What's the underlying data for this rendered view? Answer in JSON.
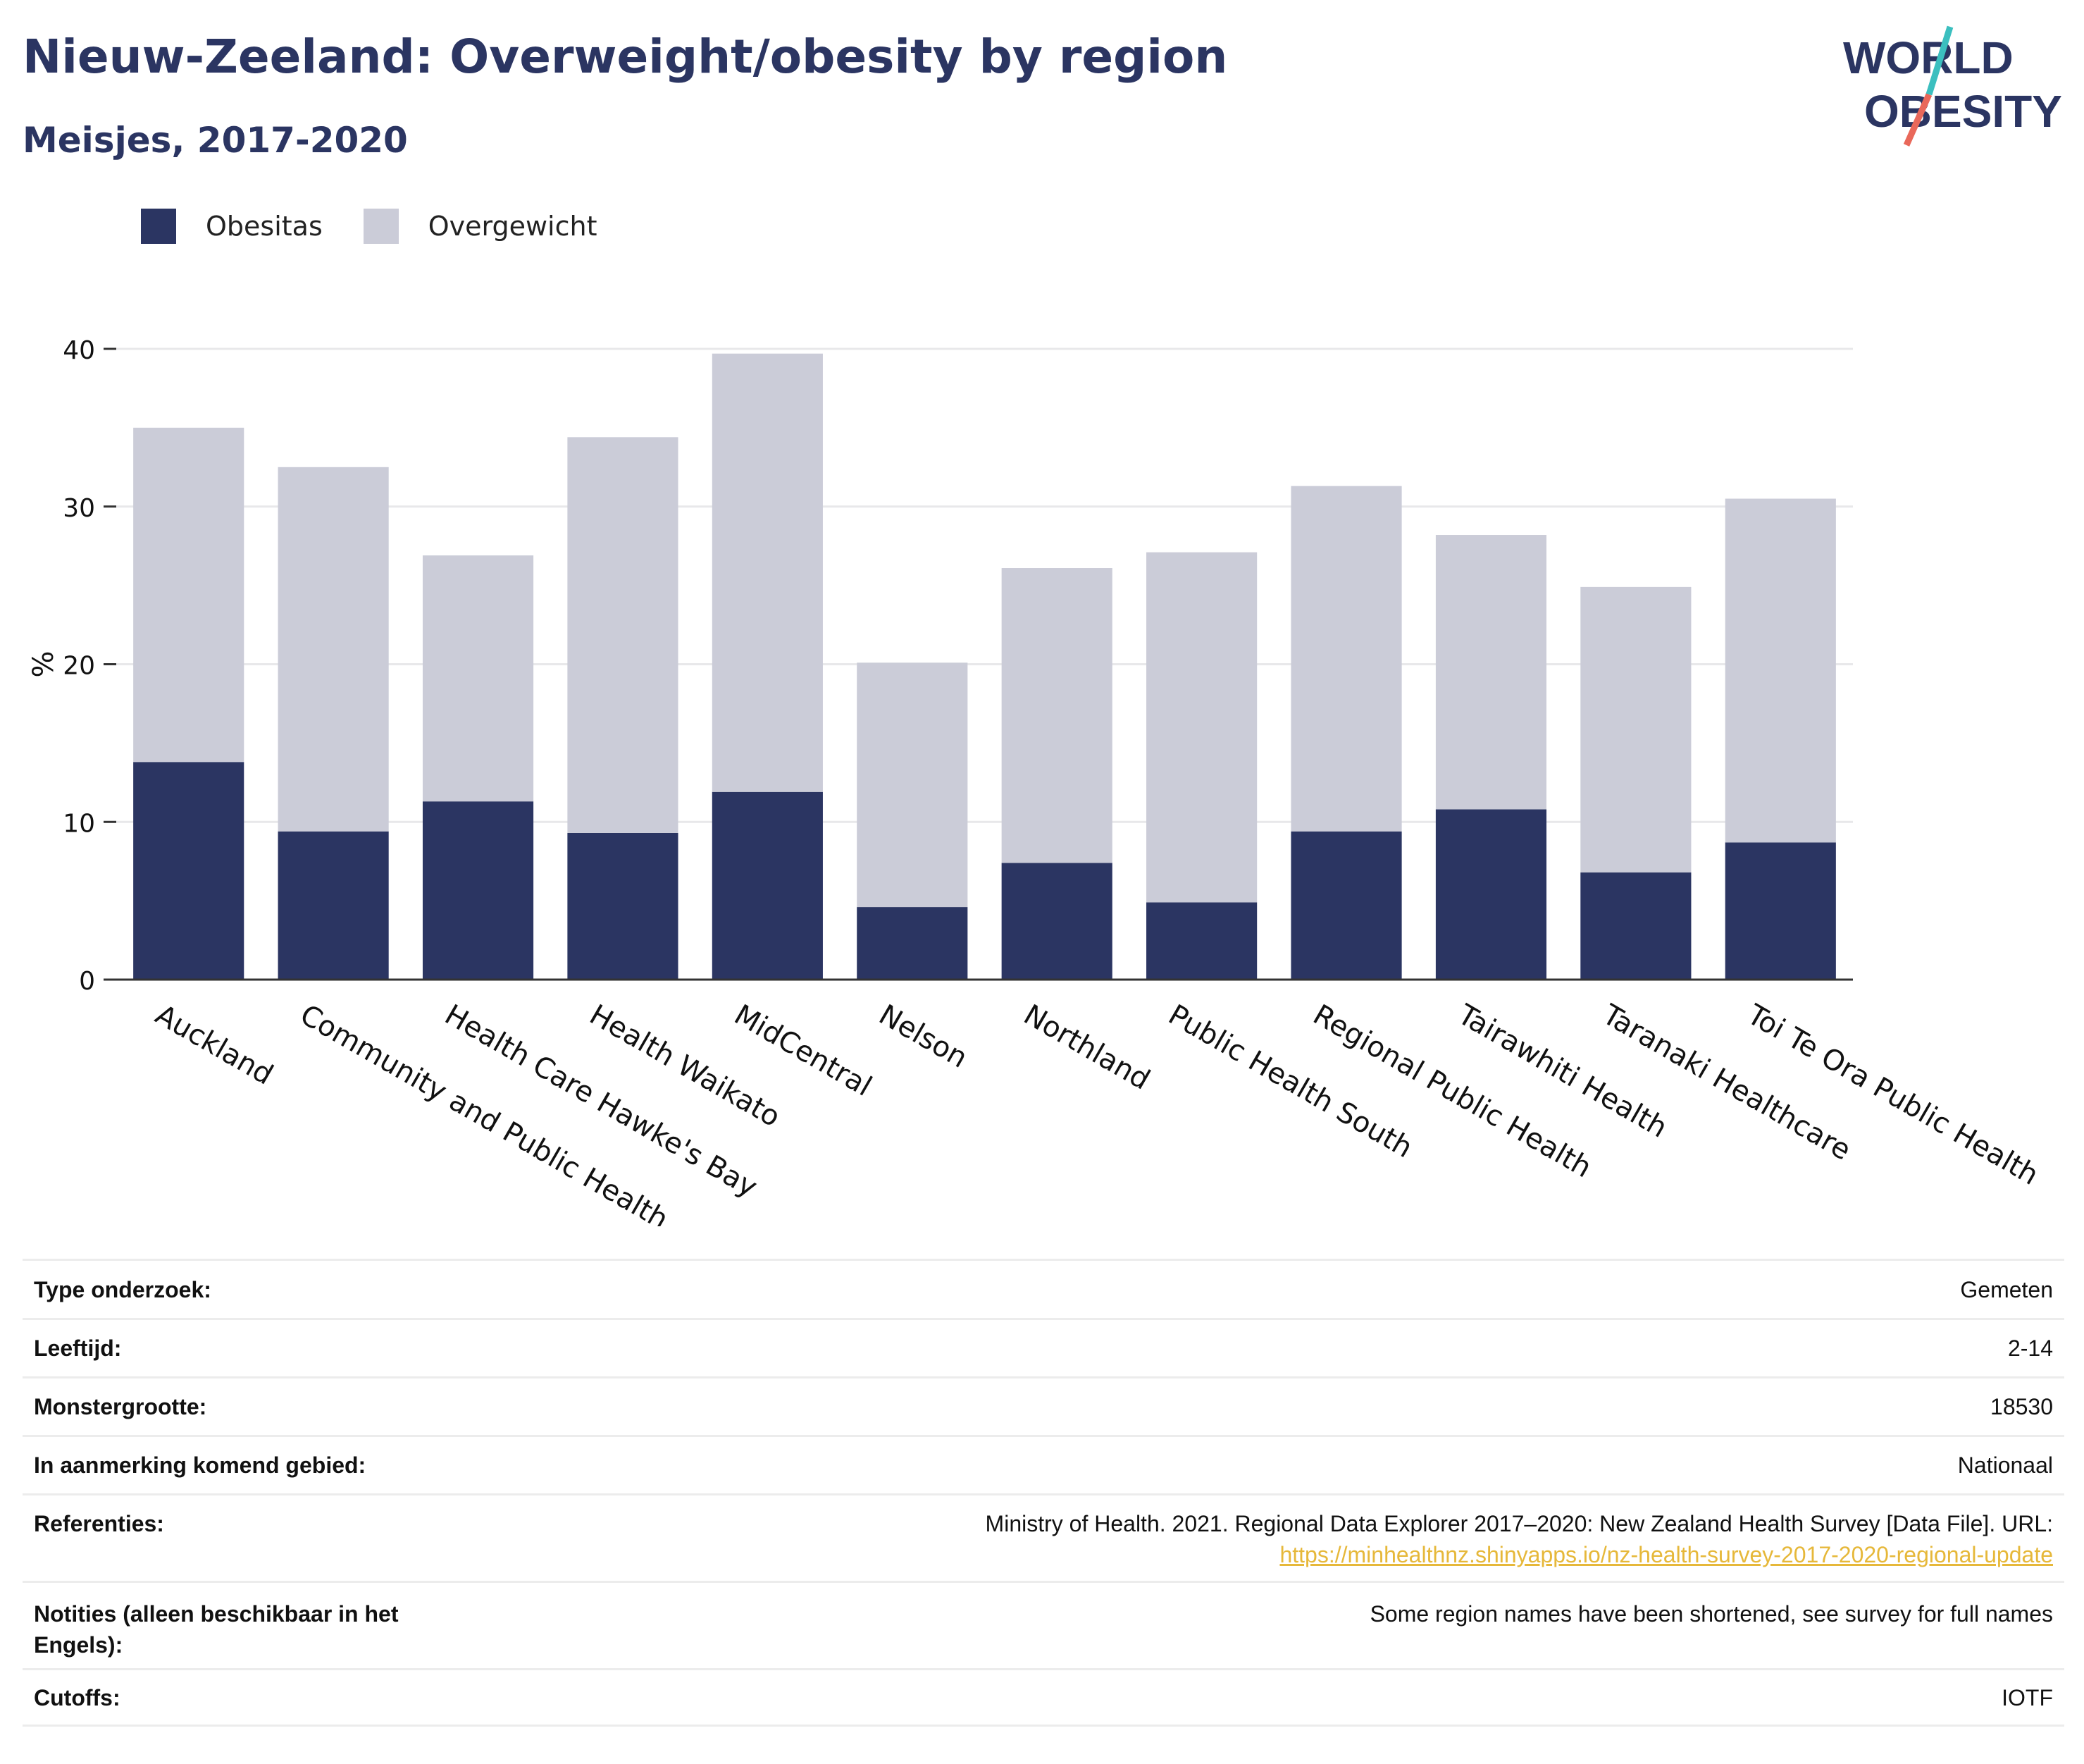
{
  "header": {
    "title": "Nieuw-Zeeland: Overweight/obesity by region",
    "subtitle": "Meisjes, 2017-2020"
  },
  "logo": {
    "line1": "WORLD",
    "line2": "OBESITY"
  },
  "colors": {
    "obese": "#2b3562",
    "overweight": "#cbccd8",
    "accent": "#e6b83a",
    "logo_teal": "#3bbfbf",
    "logo_coral": "#e9685a"
  },
  "legend": [
    "Obesitas",
    "Overgewicht"
  ],
  "chart_data": {
    "type": "bar",
    "stacked": true,
    "categories": [
      "Auckland",
      "Community and Public Health",
      "Health Care Hawke's Bay",
      "Health Waikato",
      "MidCentral",
      "Nelson",
      "Northland",
      "Public Health South",
      "Regional Public Health",
      "Tairawhiti Health",
      "Taranaki Healthcare",
      "Toi Te Ora Public Health"
    ],
    "series": [
      {
        "name": "Obesitas",
        "values": [
          13.8,
          9.4,
          11.3,
          9.3,
          11.9,
          4.6,
          7.4,
          4.9,
          9.4,
          10.8,
          6.8,
          8.7
        ]
      },
      {
        "name": "Overgewicht",
        "values": [
          21.2,
          23.1,
          15.6,
          25.1,
          27.8,
          15.5,
          18.7,
          22.2,
          21.9,
          17.4,
          18.1,
          21.8
        ]
      }
    ],
    "ylabel": "%",
    "ylim": [
      0,
      40
    ],
    "yticks": [
      "0",
      "10",
      "20",
      "30",
      "40"
    ],
    "grid": true,
    "legend_position": "top-left"
  },
  "meta": [
    {
      "label": "Type onderzoek:",
      "value": "Gemeten"
    },
    {
      "label": "Leeftijd:",
      "value": "2-14"
    },
    {
      "label": "Monstergrootte:",
      "value": "18530"
    },
    {
      "label": "In aanmerking komend gebied:",
      "value": "Nationaal"
    },
    {
      "label": "Referenties:",
      "value": "Ministry of Health. 2021. Regional Data Explorer 2017–2020: New Zealand Health Survey [Data File]. URL:",
      "link": "https://minhealthnz.shinyapps.io/nz-health-survey-2017-2020-regional-update"
    },
    {
      "label": "Notities (alleen beschikbaar in het Engels):",
      "value": "Some region names have been shortened, see survey for full names"
    },
    {
      "label": "Cutoffs:",
      "value": "IOTF"
    }
  ]
}
